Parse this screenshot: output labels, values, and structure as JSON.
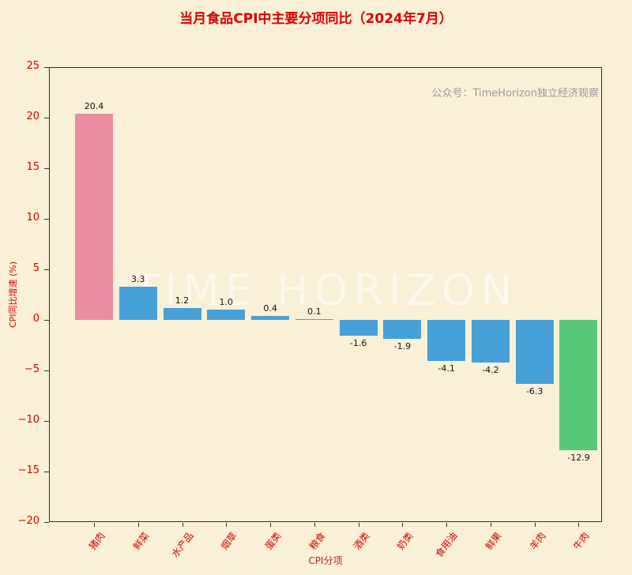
{
  "title": "当月食品CPI中主要分项同比（2024年7月）",
  "watermark_note": "公众号：TimeHorizon独立经济观察",
  "watermark_background": "TIME HORIZON",
  "chart_data": {
    "type": "bar",
    "title": "当月食品CPI中主要分项同比（2024年7月）",
    "categories": [
      "猪肉",
      "鲜菜",
      "水产品",
      "烟草",
      "蛋类",
      "粮食",
      "酒类",
      "奶类",
      "食用油",
      "鲜果",
      "羊肉",
      "牛肉"
    ],
    "values": [
      20.4,
      3.3,
      1.2,
      1.0,
      0.4,
      0.1,
      -1.6,
      -1.9,
      -4.1,
      -4.2,
      -6.3,
      -12.9
    ],
    "bar_colors": [
      "#e98da2",
      "#47a0d8",
      "#47a0d8",
      "#47a0d8",
      "#47a0d8",
      "#47a0d8",
      "#47a0d8",
      "#47a0d8",
      "#47a0d8",
      "#47a0d8",
      "#47a0d8",
      "#57c878"
    ],
    "xlabel": "CPI分项",
    "ylabel": "CPI同比增速 (%)",
    "ylim": [
      -20,
      25
    ],
    "yticks": [
      25,
      20,
      15,
      10,
      5,
      0,
      -5,
      -10,
      -15,
      -20
    ],
    "grid": false,
    "legend": "none"
  },
  "colors": {
    "background": "#faf0d7",
    "title": "#dc0000",
    "tick_labels": "#d40000",
    "category_labels": "#d40000",
    "value_labels": "#111111",
    "note": "#9a9a9a",
    "pink_bar": "#e98da2",
    "blue_bar": "#47a0d8",
    "green_bar": "#57c878"
  }
}
